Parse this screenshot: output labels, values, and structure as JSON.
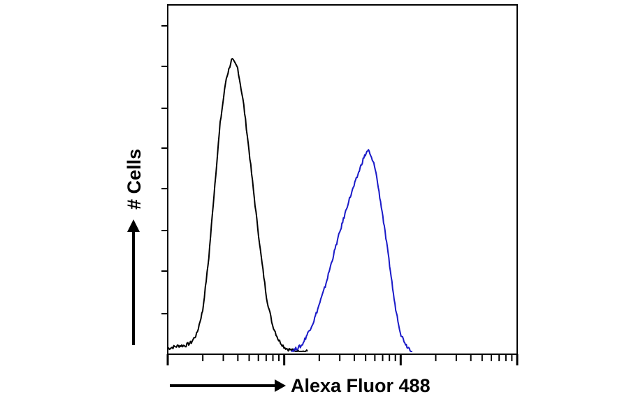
{
  "chart_data": {
    "type": "line",
    "xlabel": "Alexa Fluor 488",
    "ylabel": "# Cells",
    "xscale": "log",
    "grid": false,
    "legend": "none",
    "x_decades": 3,
    "series": [
      {
        "color": "#000000",
        "x": [
          0,
          0.05,
          0.1,
          0.15,
          0.2,
          0.25,
          0.3,
          0.35,
          0.4,
          0.45,
          0.5,
          0.55,
          0.6,
          0.65,
          0.7,
          0.75,
          0.8,
          0.85,
          0.9,
          0.95,
          1.0,
          1.03,
          1.06,
          1.09,
          1.12,
          1.15,
          1.2
        ],
        "y": [
          0.01,
          0.015,
          0.02,
          0.02,
          0.03,
          0.06,
          0.14,
          0.31,
          0.55,
          0.78,
          0.93,
          1.0,
          0.97,
          0.85,
          0.68,
          0.5,
          0.33,
          0.18,
          0.09,
          0.04,
          0.015,
          0.008,
          0.005,
          0.0,
          0.0,
          0.0,
          0.0
        ]
      },
      {
        "color": "#1a1ac8",
        "x": [
          1.06,
          1.15,
          1.25,
          1.35,
          1.45,
          1.55,
          1.62,
          1.68,
          1.72,
          1.78,
          1.84,
          1.9,
          1.95,
          2.0,
          2.05,
          2.1
        ],
        "y": [
          0.0,
          0.02,
          0.1,
          0.22,
          0.37,
          0.51,
          0.59,
          0.66,
          0.69,
          0.63,
          0.48,
          0.31,
          0.16,
          0.06,
          0.02,
          0.0
        ]
      }
    ]
  }
}
